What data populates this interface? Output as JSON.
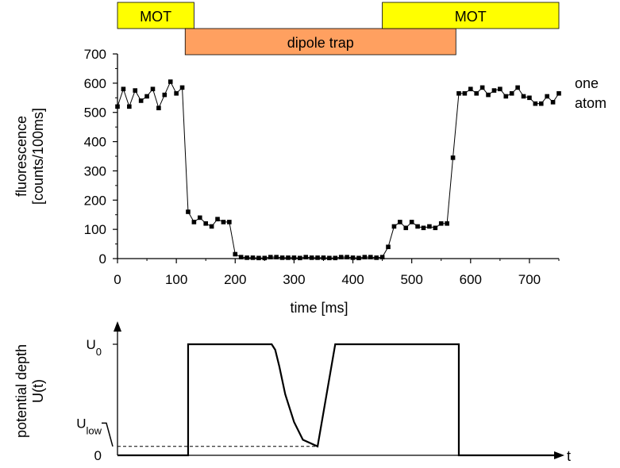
{
  "chart_data": [
    {
      "type": "scatter",
      "title": "",
      "xlabel": "time [ms]",
      "ylabel_lines": [
        "fluorescence",
        "[counts/100ms]"
      ],
      "xlim": [
        0,
        750
      ],
      "ylim": [
        0,
        700
      ],
      "xticks": [
        0,
        100,
        200,
        300,
        400,
        500,
        600,
        700
      ],
      "yticks": [
        0,
        100,
        200,
        300,
        400,
        500,
        600,
        700
      ],
      "annotation_lines": [
        "one",
        "atom"
      ],
      "marker": "square",
      "connected": true,
      "colors": {
        "line": "#000000",
        "marker": "#000000"
      },
      "series": [
        {
          "x": [
            0,
            10,
            20,
            30,
            40,
            50,
            60,
            70,
            80,
            90,
            100,
            110,
            120,
            130,
            140,
            150,
            160,
            170,
            180,
            190,
            200,
            210,
            220,
            230,
            240,
            250,
            260,
            270,
            280,
            290,
            300,
            310,
            320,
            330,
            340,
            350,
            360,
            370,
            380,
            390,
            400,
            410,
            420,
            430,
            440,
            450,
            460,
            470,
            480,
            490,
            500,
            510,
            520,
            530,
            540,
            550,
            560,
            570,
            580,
            590,
            600,
            610,
            620,
            630,
            640,
            650,
            660,
            670,
            680,
            690,
            700,
            710,
            720,
            730,
            740,
            750
          ],
          "y": [
            520,
            580,
            520,
            575,
            540,
            555,
            580,
            515,
            560,
            605,
            565,
            585,
            160,
            125,
            140,
            120,
            110,
            135,
            125,
            125,
            15,
            5,
            3,
            3,
            2,
            2,
            5,
            5,
            3,
            3,
            3,
            2,
            5,
            3,
            3,
            3,
            2,
            2,
            5,
            5,
            3,
            2,
            5,
            5,
            3,
            5,
            40,
            110,
            125,
            105,
            125,
            110,
            105,
            110,
            105,
            120,
            120,
            345,
            565,
            565,
            580,
            565,
            585,
            560,
            575,
            580,
            555,
            565,
            585,
            555,
            550,
            530,
            530,
            555,
            535,
            565
          ]
        }
      ]
    },
    {
      "type": "line",
      "title": "",
      "xlabel": "t",
      "ylabel_lines": [
        "potential depth",
        "U(t)"
      ],
      "xlim": [
        0,
        750
      ],
      "ylim": [
        0,
        1
      ],
      "ytick_labels": [
        {
          "value": 1,
          "base": "U",
          "sub": "0"
        },
        {
          "value": 0.29,
          "base": "U",
          "sub": "low"
        },
        {
          "value": 0,
          "base": "0",
          "sub": ""
        }
      ],
      "series": [
        {
          "x": [
            0,
            120,
            120,
            262,
            268,
            275,
            285,
            300,
            315,
            340,
            340,
            370,
            370,
            580,
            580,
            750
          ],
          "y": [
            0,
            0,
            1,
            1,
            0.95,
            0.8,
            0.55,
            0.3,
            0.14,
            0.08,
            0.08,
            1,
            1,
            1,
            0,
            0
          ]
        }
      ],
      "reference": {
        "x": [
          0,
          340
        ],
        "y": [
          0.08,
          0.08
        ],
        "style": "dashed"
      },
      "colors": {
        "line": "#000000"
      }
    }
  ],
  "top_bars": [
    {
      "label": "MOT",
      "start": 0,
      "end": 130,
      "color": "#ffff00",
      "row": 0
    },
    {
      "label": "dipole trap",
      "start": 115,
      "end": 575,
      "color": "#ffa060",
      "row": 1
    },
    {
      "label": "MOT",
      "start": 450,
      "end": 750,
      "color": "#ffff00",
      "row": 0
    }
  ]
}
